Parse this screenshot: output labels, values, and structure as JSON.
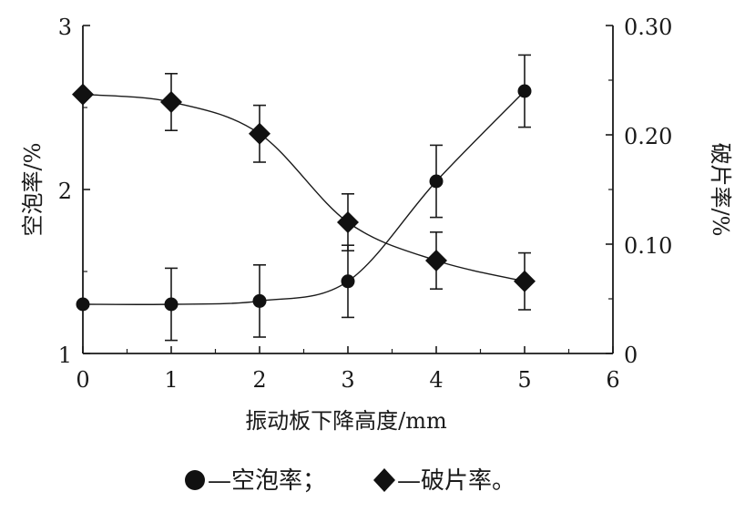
{
  "chart_data": {
    "type": "line",
    "xlabel": "振动板下降高度/mm",
    "ylabel_left": "空泡率/%",
    "ylabel_right": "破片率/%",
    "xlim": [
      0,
      6
    ],
    "ylim_left": [
      1,
      3
    ],
    "ylim_right": [
      0,
      0.3
    ],
    "x_ticks": [
      "0",
      "1",
      "2",
      "3",
      "4",
      "5",
      "6"
    ],
    "y_left_ticks": [
      "1",
      "2",
      "3"
    ],
    "y_right_ticks": [
      "0",
      "0.10",
      "0.20",
      "0.30"
    ],
    "grid": false,
    "series": [
      {
        "name": "空泡率",
        "marker": "circle",
        "axis": "left",
        "x": [
          0,
          1,
          2,
          3,
          4,
          5
        ],
        "y": [
          1.3,
          1.3,
          1.32,
          1.44,
          2.05,
          2.6
        ],
        "err": [
          0,
          0.22,
          0.22,
          0.22,
          0.22,
          0.22
        ]
      },
      {
        "name": "破片率",
        "marker": "diamond",
        "axis": "right",
        "x": [
          0,
          1,
          2,
          3,
          4,
          5
        ],
        "y": [
          0.237,
          0.23,
          0.201,
          0.12,
          0.085,
          0.066
        ],
        "err": [
          0,
          0.026,
          0.026,
          0.026,
          0.026,
          0.026
        ]
      }
    ],
    "legend": {
      "text_circle": "—空泡率；",
      "text_diamond": "—破片率。"
    }
  }
}
